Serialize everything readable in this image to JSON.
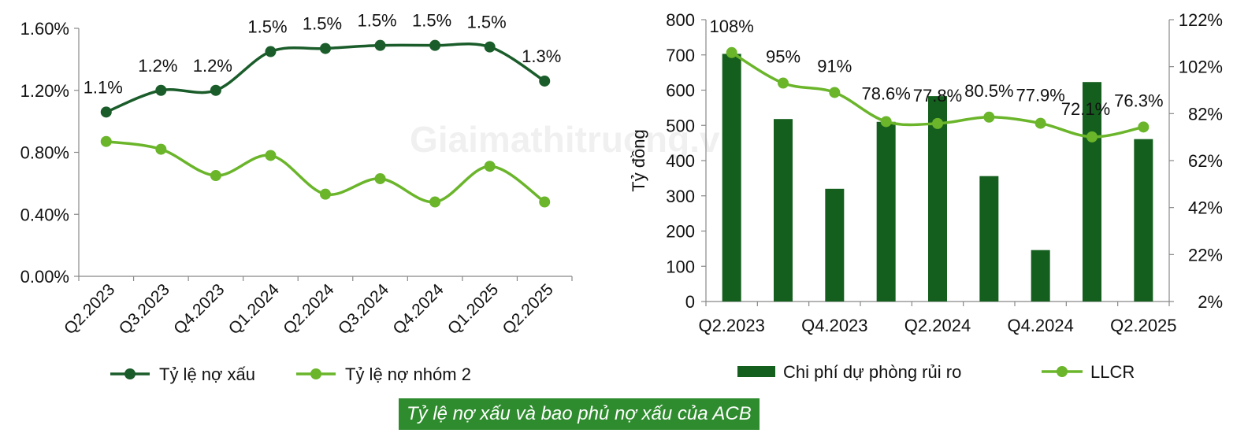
{
  "caption": "Tỷ lệ nợ xấu và bao phủ nợ xấu của ACB",
  "watermark": "Giaimathitruong.vn",
  "colors": {
    "dark_green": "#1a5c2a",
    "light_green": "#6ab52a",
    "bar_green": "#155f1e",
    "caption_bg": "#2e8b2e"
  },
  "chart_data": [
    {
      "type": "line",
      "categories": [
        "Q2.2023",
        "Q3.2023",
        "Q4.2023",
        "Q1.2024",
        "Q2.2024",
        "Q3.2024",
        "Q4.2024",
        "Q1.2025",
        "Q2.2025"
      ],
      "series": [
        {
          "name": "Tỷ lệ nợ xấu",
          "values": [
            1.06,
            1.2,
            1.2,
            1.45,
            1.47,
            1.49,
            1.49,
            1.48,
            1.26
          ],
          "labels": [
            "1.1%",
            "1.2%",
            "1.2%",
            "1.5%",
            "1.5%",
            "1.5%",
            "1.5%",
            "1.5%",
            "1.3%"
          ]
        },
        {
          "name": "Tỷ lệ nợ nhóm 2",
          "values": [
            0.87,
            0.82,
            0.65,
            0.78,
            0.53,
            0.63,
            0.48,
            0.71,
            0.48
          ]
        }
      ],
      "ylim": [
        0,
        1.6
      ],
      "yticks": [
        "0.00%",
        "0.40%",
        "0.80%",
        "1.20%",
        "1.60%"
      ],
      "grid": false,
      "legend": "bottom"
    },
    {
      "type": "bar",
      "categories": [
        "Q2.2023",
        "Q3.2023",
        "Q4.2023",
        "Q1.2024",
        "Q2.2024",
        "Q3.2024",
        "Q4.2024",
        "Q1.2025",
        "Q2.2025"
      ],
      "tick_labels": [
        "Q2.2023",
        "Q4.2023",
        "Q2.2024",
        "Q4.2024",
        "Q2.2025"
      ],
      "series": [
        {
          "name": "Chi phí dự phòng rủi ro",
          "type": "bar",
          "axis": "left",
          "values": [
            703,
            518,
            320,
            510,
            583,
            356,
            146,
            623,
            461
          ]
        },
        {
          "name": "LLCR",
          "type": "line",
          "axis": "right",
          "values": [
            108,
            95,
            91,
            78.6,
            77.8,
            80.5,
            77.9,
            72.1,
            76.3
          ],
          "labels": [
            "108%",
            "95%",
            "91%",
            "78.6%",
            "77.8%",
            "80.5%",
            "77.9%",
            "72.1%",
            "76.3%"
          ]
        }
      ],
      "ylabel": "Tỷ đồng",
      "ylim": [
        0,
        800
      ],
      "yticks": [
        "0",
        "100",
        "200",
        "300",
        "400",
        "500",
        "600",
        "700",
        "800"
      ],
      "y2lim": [
        2,
        122
      ],
      "y2ticks": [
        "2%",
        "22%",
        "42%",
        "62%",
        "82%",
        "102%",
        "122%"
      ],
      "grid": false,
      "legend": "bottom"
    }
  ]
}
